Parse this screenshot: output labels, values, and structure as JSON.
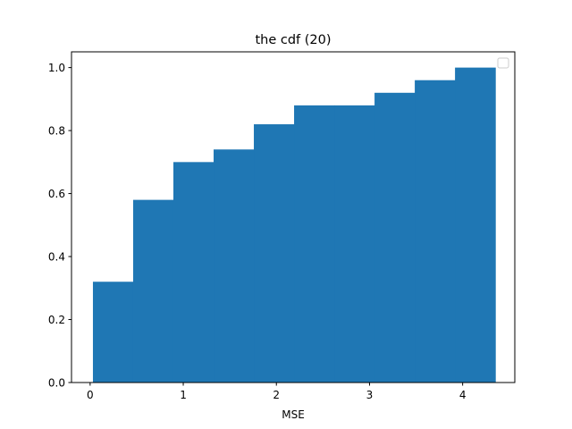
{
  "chart_data": {
    "type": "bar",
    "style": "cumulative-histogram",
    "title": "the cdf (20)",
    "xlabel": "MSE",
    "ylabel": "",
    "xlim": [
      -0.2,
      4.56
    ],
    "ylim": [
      0.0,
      1.05
    ],
    "xticks": [
      0,
      1,
      2,
      3,
      4
    ],
    "xtick_labels": [
      "0",
      "1",
      "2",
      "3",
      "4"
    ],
    "yticks": [
      0.0,
      0.2,
      0.4,
      0.6,
      0.8,
      1.0
    ],
    "ytick_labels": [
      "0.0",
      "0.2",
      "0.4",
      "0.6",
      "0.8",
      "1.0"
    ],
    "bin_edges": [
      0.03,
      0.462,
      0.894,
      1.326,
      1.758,
      2.19,
      2.622,
      3.054,
      3.486,
      3.918,
      4.35
    ],
    "values": [
      0.32,
      0.58,
      0.7,
      0.74,
      0.82,
      0.88,
      0.88,
      0.92,
      0.96,
      1.0
    ],
    "bar_color": "#1f77b4",
    "grid": false,
    "legend": {
      "placement": "top-right",
      "entries": []
    }
  }
}
